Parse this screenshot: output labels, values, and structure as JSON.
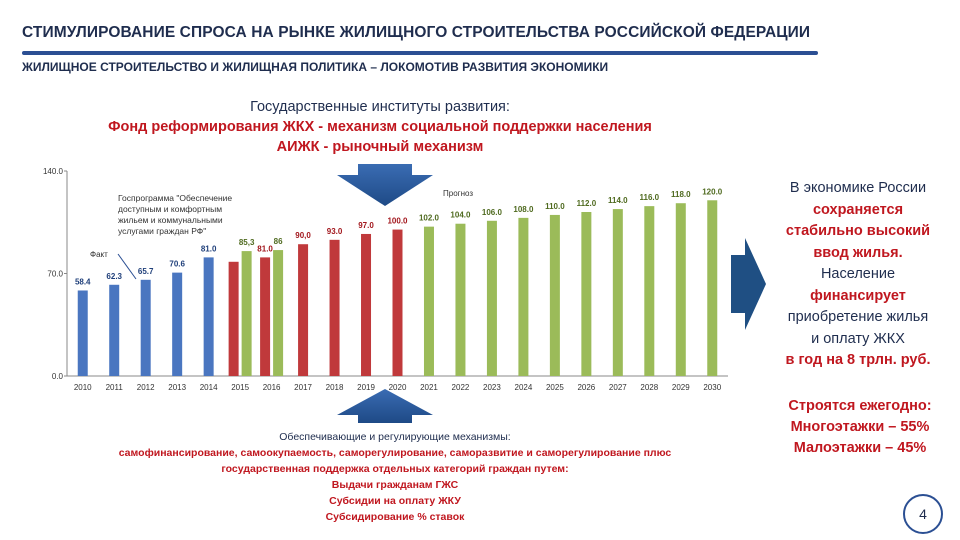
{
  "header": {
    "title": "СТИМУЛИРОВАНИЕ СПРОСА НА РЫНКЕ ЖИЛИЩНОГО СТРОИТЕЛЬСТВА РОССИЙСКОЙ ФЕДЕРАЦИИ",
    "subtitle": "ЖИЛИЩНОЕ СТРОИТЕЛЬСТВО И ЖИЛИЩНАЯ ПОЛИТИКА – ЛОКОМОТИВ РАЗВИТИЯ ЭКОНОМИКИ"
  },
  "institutions": {
    "line1": "Государственные институты развития:",
    "line2": "Фонд реформирования ЖКХ - механизм социальной поддержки населения",
    "line3": "АИЖК  - рыночный механизм"
  },
  "chart_data": {
    "type": "bar",
    "categories": [
      "2010",
      "2011",
      "2012",
      "2013",
      "2014",
      "2015",
      "2016",
      "2017",
      "2018",
      "2019",
      "2020",
      "2021",
      "2022",
      "2023",
      "2024",
      "2025",
      "2026",
      "2027",
      "2028",
      "2029",
      "2030"
    ],
    "ylim": [
      0,
      140
    ],
    "yticks": [
      "0.0",
      "70.0",
      "140.0"
    ],
    "series": [
      {
        "name": "Факт",
        "color": "#4a76c0",
        "values": [
          58.4,
          62.3,
          65.7,
          70.6,
          81.0,
          null,
          null,
          null,
          null,
          null,
          null,
          null,
          null,
          null,
          null,
          null,
          null,
          null,
          null,
          null,
          null
        ],
        "labels": [
          "58.4",
          "62.3",
          "65.7",
          "70.6",
          "81.0",
          "",
          "",
          "",
          "",
          "",
          "",
          "",
          "",
          "",
          "",
          "",
          "",
          "",
          "",
          "",
          ""
        ]
      },
      {
        "name": "Госпрограмма",
        "color": "#c0393b",
        "values": [
          null,
          null,
          null,
          null,
          null,
          78.0,
          81.0,
          90.0,
          93.0,
          97.0,
          100.0,
          null,
          null,
          null,
          null,
          null,
          null,
          null,
          null,
          null,
          null
        ],
        "labels": [
          "",
          "",
          "",
          "",
          "",
          "",
          "81.0",
          "90,0",
          "93.0",
          "97.0",
          "100.0",
          "",
          "",
          "",
          "",
          "",
          "",
          "",
          "",
          "",
          ""
        ]
      },
      {
        "name": "Прогноз",
        "color": "#9bbb59",
        "values": [
          null,
          null,
          null,
          null,
          null,
          85.3,
          86.0,
          null,
          null,
          null,
          null,
          102.0,
          104.0,
          106.0,
          108.0,
          110.0,
          112.0,
          114.0,
          116.0,
          118.0,
          120.0
        ],
        "labels": [
          "",
          "",
          "",
          "",
          "",
          "85,3",
          "86",
          "",
          "",
          "",
          "",
          "102.0",
          "104.0",
          "106.0",
          "108.0",
          "110.0",
          "112.0",
          "114.0",
          "116.0",
          "118.0",
          "120.0"
        ]
      }
    ],
    "annotations": {
      "fact_label": "Факт",
      "forecast_label": "Прогноз",
      "program_line1": "Госпрограмма \"Обеспечение",
      "program_line2": "доступным и комфортным",
      "program_line3": "жильем и коммунальными",
      "program_line4": "услугами граждан РФ\""
    }
  },
  "right_panel": {
    "l1": "В экономике России",
    "l2": "сохраняется",
    "l3": "стабильно  высокий",
    "l4": "ввод жилья.",
    "l5": "Население",
    "l6": "финансирует",
    "l7": "приобретение жилья",
    "l8": "и оплату ЖКХ",
    "l9": "в год на 8 трлн. руб."
  },
  "builds": {
    "l1": "Строятся ежегодно:",
    "l2": "Многоэтажки – 55%",
    "l3": "Малоэтажки – 45%"
  },
  "mechanisms": {
    "m1": "Обеспечивающие и регулирующие механизмы:",
    "m2": "самофинансирование, самоокупаемость, саморегулирование, саморазвитие и саморегулирование плюс",
    "m3": "государственная поддержка отдельных категорий  граждан путем:",
    "m4": "Выдачи  гражданам ГЖС",
    "m5": "Субсидии на оплату ЖКУ",
    "m6": "Субсидирование % ставок"
  },
  "page_number": "4"
}
